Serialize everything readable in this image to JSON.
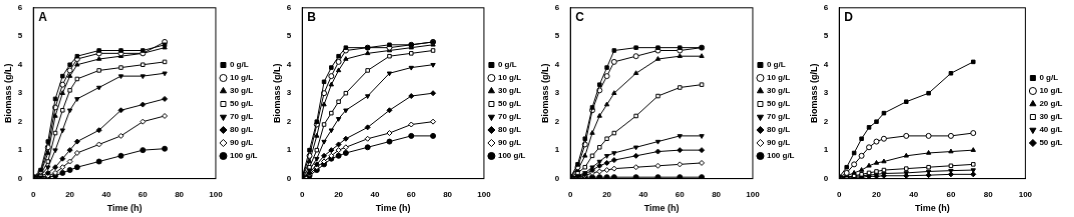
{
  "chart_data": [
    {
      "type": "line",
      "title": "A",
      "x_label": "Time (h)",
      "y_label": "Biomass (g/L)",
      "x": [
        0,
        4,
        8,
        12,
        16,
        20,
        24,
        36,
        48,
        60,
        72
      ],
      "xlim": [
        0,
        100
      ],
      "xticks": [
        0,
        20,
        40,
        60,
        80,
        100
      ],
      "ylim": [
        0,
        6
      ],
      "yticks": [
        0,
        1,
        2,
        3,
        4,
        5,
        6
      ],
      "grid": false,
      "legend": "right",
      "series": [
        {
          "name": "0 g/L",
          "color": "#000000",
          "marker": "square",
          "values": [
            0.05,
            0.3,
            1.3,
            2.8,
            3.6,
            4.0,
            4.3,
            4.5,
            4.5,
            4.5,
            4.7
          ]
        },
        {
          "name": "10 g/L",
          "color": "#000000",
          "marker": "circle_open",
          "values": [
            0.05,
            0.25,
            1.1,
            2.5,
            3.3,
            3.8,
            4.2,
            4.4,
            4.4,
            4.4,
            4.8
          ]
        },
        {
          "name": "30 g/L",
          "color": "#000000",
          "marker": "triangle",
          "values": [
            0.05,
            0.2,
            0.9,
            2.2,
            3.0,
            3.6,
            4.0,
            4.2,
            4.3,
            4.4,
            4.6
          ]
        },
        {
          "name": "50 g/L",
          "color": "#000000",
          "marker": "square_open",
          "values": [
            0.05,
            0.15,
            0.6,
            1.6,
            2.4,
            3.1,
            3.5,
            3.8,
            3.9,
            4.0,
            4.1
          ]
        },
        {
          "name": "70 g/L",
          "color": "#000000",
          "marker": "triangle_down",
          "values": [
            0.05,
            0.1,
            0.4,
            1.0,
            1.7,
            2.4,
            2.8,
            3.2,
            3.6,
            3.6,
            3.7
          ]
        },
        {
          "name": "80 g/L",
          "color": "#000000",
          "marker": "diamond",
          "values": [
            0.05,
            0.08,
            0.2,
            0.4,
            0.7,
            1.0,
            1.3,
            1.7,
            2.4,
            2.6,
            2.8
          ]
        },
        {
          "name": "90 g/L",
          "color": "#000000",
          "marker": "diamond_open",
          "values": [
            0.05,
            0.05,
            0.1,
            0.2,
            0.4,
            0.6,
            0.9,
            1.2,
            1.5,
            2.0,
            2.2
          ]
        },
        {
          "name": "100 g/L",
          "color": "#000000",
          "marker": "circle",
          "values": [
            0.05,
            0.05,
            0.05,
            0.1,
            0.2,
            0.3,
            0.4,
            0.6,
            0.8,
            1.0,
            1.05
          ]
        }
      ]
    },
    {
      "type": "line",
      "title": "B",
      "x_label": "Time (h)",
      "y_label": "Biomass (g/L)",
      "x": [
        0,
        4,
        8,
        12,
        16,
        20,
        24,
        36,
        48,
        60,
        72
      ],
      "xlim": [
        0,
        100
      ],
      "xticks": [
        0,
        20,
        40,
        60,
        80,
        100
      ],
      "ylim": [
        0,
        6
      ],
      "yticks": [
        0,
        1,
        2,
        3,
        4,
        5,
        6
      ],
      "grid": false,
      "legend": "right",
      "series": [
        {
          "name": "0 g/L",
          "color": "#000000",
          "marker": "square",
          "values": [
            0.05,
            1.0,
            2.0,
            3.4,
            3.9,
            4.3,
            4.6,
            4.6,
            4.7,
            4.7,
            4.8
          ]
        },
        {
          "name": "10 g/L",
          "color": "#000000",
          "marker": "circle_open",
          "values": [
            0.05,
            0.8,
            1.9,
            3.0,
            3.6,
            4.1,
            4.5,
            4.6,
            4.6,
            4.7,
            4.8
          ]
        },
        {
          "name": "30 g/L",
          "color": "#000000",
          "marker": "triangle",
          "values": [
            0.05,
            0.6,
            1.5,
            2.6,
            3.3,
            3.8,
            4.2,
            4.4,
            4.5,
            4.6,
            4.7
          ]
        },
        {
          "name": "50 g/L",
          "color": "#000000",
          "marker": "square_open",
          "values": [
            0.05,
            0.4,
            1.0,
            1.9,
            2.3,
            2.7,
            3.0,
            3.8,
            4.3,
            4.4,
            4.5
          ]
        },
        {
          "name": "70 g/L",
          "color": "#000000",
          "marker": "triangle_down",
          "values": [
            0.05,
            0.3,
            0.7,
            1.3,
            1.7,
            2.1,
            2.4,
            2.9,
            3.7,
            3.9,
            4.0
          ]
        },
        {
          "name": "80 g/L",
          "color": "#000000",
          "marker": "diamond",
          "values": [
            0.05,
            0.2,
            0.5,
            0.8,
            1.0,
            1.2,
            1.4,
            1.8,
            2.4,
            2.9,
            3.0
          ]
        },
        {
          "name": "90 g/L",
          "color": "#000000",
          "marker": "diamond_open",
          "values": [
            0.05,
            0.15,
            0.4,
            0.6,
            0.8,
            1.0,
            1.1,
            1.4,
            1.6,
            1.9,
            2.0
          ]
        },
        {
          "name": "100 g/L",
          "color": "#000000",
          "marker": "circle",
          "values": [
            0.05,
            0.1,
            0.3,
            0.5,
            0.7,
            0.8,
            0.9,
            1.1,
            1.3,
            1.5,
            1.5
          ]
        }
      ]
    },
    {
      "type": "line",
      "title": "C",
      "x_label": "Time (h)",
      "y_label": "Biomass (g/L)",
      "x": [
        0,
        4,
        8,
        12,
        16,
        20,
        24,
        36,
        48,
        60,
        72
      ],
      "xlim": [
        0,
        100
      ],
      "xticks": [
        0,
        20,
        40,
        60,
        80,
        100
      ],
      "ylim": [
        0,
        6
      ],
      "yticks": [
        0,
        1,
        2,
        3,
        4,
        5,
        6
      ],
      "grid": false,
      "legend": "right",
      "series": [
        {
          "name": "0 g/L",
          "color": "#000000",
          "marker": "square",
          "values": [
            0.05,
            0.5,
            1.4,
            2.5,
            3.3,
            3.9,
            4.5,
            4.6,
            4.6,
            4.6,
            4.6
          ]
        },
        {
          "name": "10 g/L",
          "color": "#000000",
          "marker": "circle_open",
          "values": [
            0.05,
            0.4,
            1.2,
            2.4,
            3.1,
            3.6,
            4.1,
            4.3,
            4.5,
            4.5,
            4.6
          ]
        },
        {
          "name": "30 g/L",
          "color": "#000000",
          "marker": "triangle",
          "values": [
            0.05,
            0.3,
            0.8,
            1.6,
            2.2,
            2.6,
            3.0,
            3.7,
            4.2,
            4.3,
            4.3
          ]
        },
        {
          "name": "50 g/L",
          "color": "#000000",
          "marker": "square_open",
          "values": [
            0.05,
            0.2,
            0.4,
            0.8,
            1.1,
            1.4,
            1.6,
            2.2,
            2.9,
            3.2,
            3.3
          ]
        },
        {
          "name": "70 g/L",
          "color": "#000000",
          "marker": "triangle_down",
          "values": [
            0.05,
            0.1,
            0.2,
            0.4,
            0.6,
            0.8,
            0.9,
            1.1,
            1.3,
            1.5,
            1.5
          ]
        },
        {
          "name": "80 g/L",
          "color": "#000000",
          "marker": "diamond",
          "values": [
            0.05,
            0.08,
            0.15,
            0.3,
            0.45,
            0.55,
            0.65,
            0.8,
            0.95,
            1.0,
            1.0
          ]
        },
        {
          "name": "90 g/L",
          "color": "#000000",
          "marker": "diamond_open",
          "values": [
            0.05,
            0.05,
            0.1,
            0.2,
            0.25,
            0.3,
            0.35,
            0.4,
            0.45,
            0.5,
            0.55
          ]
        },
        {
          "name": "100 g/L",
          "color": "#000000",
          "marker": "circle",
          "values": [
            0.05,
            0.05,
            0.05,
            0.05,
            0.05,
            0.05,
            0.05,
            0.05,
            0.05,
            0.05,
            0.05
          ]
        }
      ]
    },
    {
      "type": "line",
      "title": "D",
      "x_label": "Time (h)",
      "y_label": "Biomass (g/L)",
      "x": [
        0,
        4,
        8,
        12,
        16,
        20,
        24,
        36,
        48,
        60,
        72
      ],
      "xlim": [
        0,
        100
      ],
      "xticks": [
        0,
        20,
        40,
        60,
        80,
        100
      ],
      "ylim": [
        0,
        6
      ],
      "yticks": [
        0,
        1,
        2,
        3,
        4,
        5,
        6
      ],
      "grid": false,
      "legend": "right",
      "series": [
        {
          "name": "0 g/L",
          "color": "#000000",
          "marker": "square",
          "values": [
            0.05,
            0.4,
            0.9,
            1.4,
            1.8,
            2.0,
            2.3,
            2.7,
            3.0,
            3.7,
            4.1
          ]
        },
        {
          "name": "10 g/L",
          "color": "#000000",
          "marker": "circle_open",
          "values": [
            0.05,
            0.2,
            0.5,
            0.8,
            1.1,
            1.3,
            1.4,
            1.5,
            1.5,
            1.5,
            1.6
          ]
        },
        {
          "name": "20 g/L",
          "color": "#000000",
          "marker": "triangle",
          "values": [
            0.05,
            0.1,
            0.2,
            0.3,
            0.45,
            0.55,
            0.6,
            0.8,
            0.9,
            0.95,
            1.0
          ]
        },
        {
          "name": "30 g/L",
          "color": "#000000",
          "marker": "square_open",
          "values": [
            0.05,
            0.05,
            0.1,
            0.15,
            0.2,
            0.25,
            0.3,
            0.35,
            0.4,
            0.45,
            0.5
          ]
        },
        {
          "name": "40 g/L",
          "color": "#000000",
          "marker": "triangle_down",
          "values": [
            0.05,
            0.05,
            0.08,
            0.1,
            0.12,
            0.15,
            0.18,
            0.2,
            0.25,
            0.28,
            0.3
          ]
        },
        {
          "name": "50 g/L",
          "color": "#000000",
          "marker": "diamond",
          "values": [
            0.05,
            0.05,
            0.05,
            0.05,
            0.08,
            0.08,
            0.1,
            0.1,
            0.12,
            0.15,
            0.15
          ]
        }
      ]
    }
  ]
}
